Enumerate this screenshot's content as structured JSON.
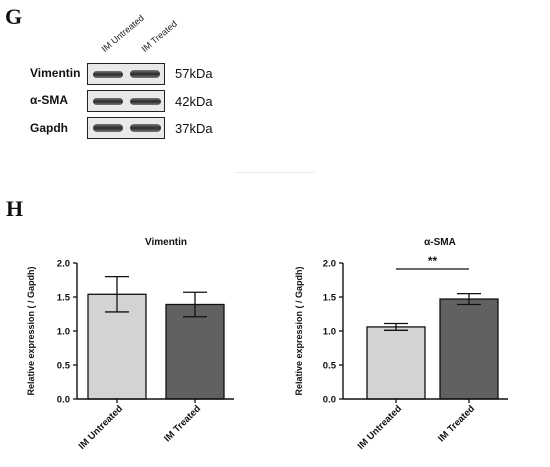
{
  "panels": {
    "g_label": "G",
    "h_label": "H"
  },
  "blot": {
    "lanes": [
      "IM Untreated",
      "IM Treated"
    ],
    "rows": [
      {
        "label": "Vimentin",
        "kda": "57kDa"
      },
      {
        "label": "α-SMA",
        "kda": "42kDa"
      },
      {
        "label": "Gapdh",
        "kda": "37kDa"
      }
    ]
  },
  "chart_data": [
    {
      "type": "bar",
      "title": "Vimentin",
      "categories": [
        "IM Untreated",
        "IM Treated"
      ],
      "values": [
        1.54,
        1.39
      ],
      "errors": [
        0.26,
        0.18
      ],
      "bar_colors": [
        "#d3d3d3",
        "#616161"
      ],
      "ylabel": "Relative expression ( / Gapdh)",
      "ylim": [
        0,
        2.0
      ],
      "yticks": [
        "0.0",
        "0.5",
        "1.0",
        "1.5",
        "2.0"
      ],
      "significance": ""
    },
    {
      "type": "bar",
      "title": "α-SMA",
      "categories": [
        "IM Untreated",
        "IM Treated"
      ],
      "values": [
        1.06,
        1.47
      ],
      "errors": [
        0.05,
        0.08
      ],
      "bar_colors": [
        "#d3d3d3",
        "#616161"
      ],
      "ylabel": "Relative expression ( / Gapdh)",
      "ylim": [
        0,
        2.0
      ],
      "yticks": [
        "0.0",
        "0.5",
        "1.0",
        "1.5",
        "2.0"
      ],
      "significance": "**"
    }
  ]
}
